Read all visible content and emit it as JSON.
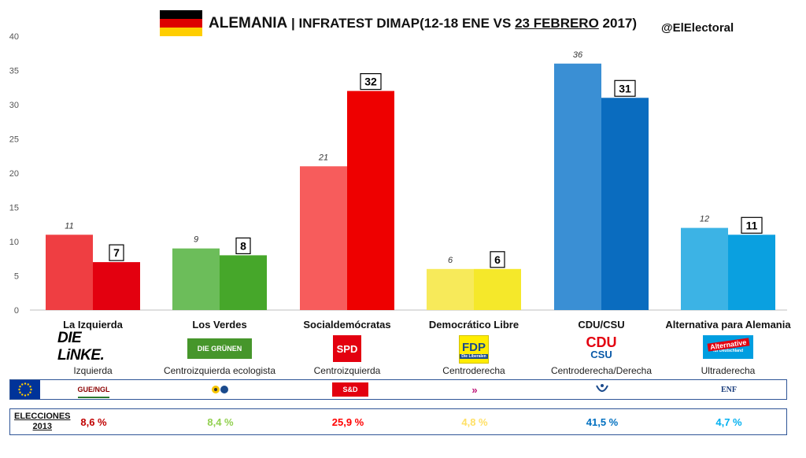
{
  "header": {
    "title_main": "ALEMANIA",
    "title_sep": " | ",
    "title_pre": "INFRATEST DIMAP(12-18 ENE VS ",
    "title_date": "23 FEBRERO",
    "title_post": " 2017)",
    "handle": "@ElElectoral"
  },
  "flag_colors": [
    "#000000",
    "#dd0000",
    "#ffce00"
  ],
  "chart_data": {
    "type": "bar",
    "categories": [
      "La Izquierda",
      "Los Verdes",
      "Socialdemócratas",
      "Democrático Libre",
      "CDU/CSU",
      "Alternativa para Alemania"
    ],
    "series": [
      {
        "values": [
          11,
          9,
          21,
          6,
          36,
          12
        ]
      },
      {
        "values": [
          7,
          8,
          32,
          6,
          31,
          11
        ]
      }
    ],
    "colors_old": [
      "#ef3e42",
      "#6cbd5a",
      "#f75c5c",
      "#f7ea5a",
      "#3a8fd4",
      "#3cb3e5"
    ],
    "colors_new": [
      "#e3000f",
      "#46a72a",
      "#ee0000",
      "#f5e82a",
      "#0a6cbf",
      "#0aa0e0"
    ],
    "yticks": [
      0,
      5,
      10,
      15,
      20,
      25,
      30,
      35,
      40
    ],
    "ylim": [
      0,
      40
    ],
    "grid": false
  },
  "parties": [
    {
      "name": "La Izquierda",
      "logo": "DIE LiNKE.",
      "ideology": "Izquierda",
      "eu_group": "GUE/NGL",
      "elections_2013": "8,6 %",
      "color": "#c00000"
    },
    {
      "name": "Los Verdes",
      "logo": "DIE GRÜNEN",
      "ideology": "Centroizquierda ecologista",
      "eu_group": "",
      "elections_2013": "8,4 %",
      "color": "#92d050"
    },
    {
      "name": "Socialdemócratas",
      "logo": "SPD",
      "ideology": "Centroizquierda",
      "eu_group": "S&D",
      "elections_2013": "25,9 %",
      "color": "#ff0000"
    },
    {
      "name": "Democrático Libre",
      "logo": "FDP",
      "logo_sub": "Die Liberalen",
      "ideology": "Centroderecha",
      "eu_group": "»",
      "elections_2013": "4,8 %",
      "color": "#ffe066"
    },
    {
      "name": "CDU/CSU",
      "logo": "CDU",
      "logo_sub": "CSU",
      "ideology": "Centroderecha/Derecha",
      "eu_group": "",
      "elections_2013": "41,5 %",
      "color": "#0070c0"
    },
    {
      "name": "Alternativa para Alemania",
      "logo": "Alternative",
      "logo_sub": "für Deutschland",
      "ideology": "Ultraderecha",
      "eu_group": "ENF",
      "elections_2013": "4,7 %",
      "color": "#00b0f0"
    }
  ],
  "elections_label_1": "ELECCIONES",
  "elections_label_2": "2013"
}
